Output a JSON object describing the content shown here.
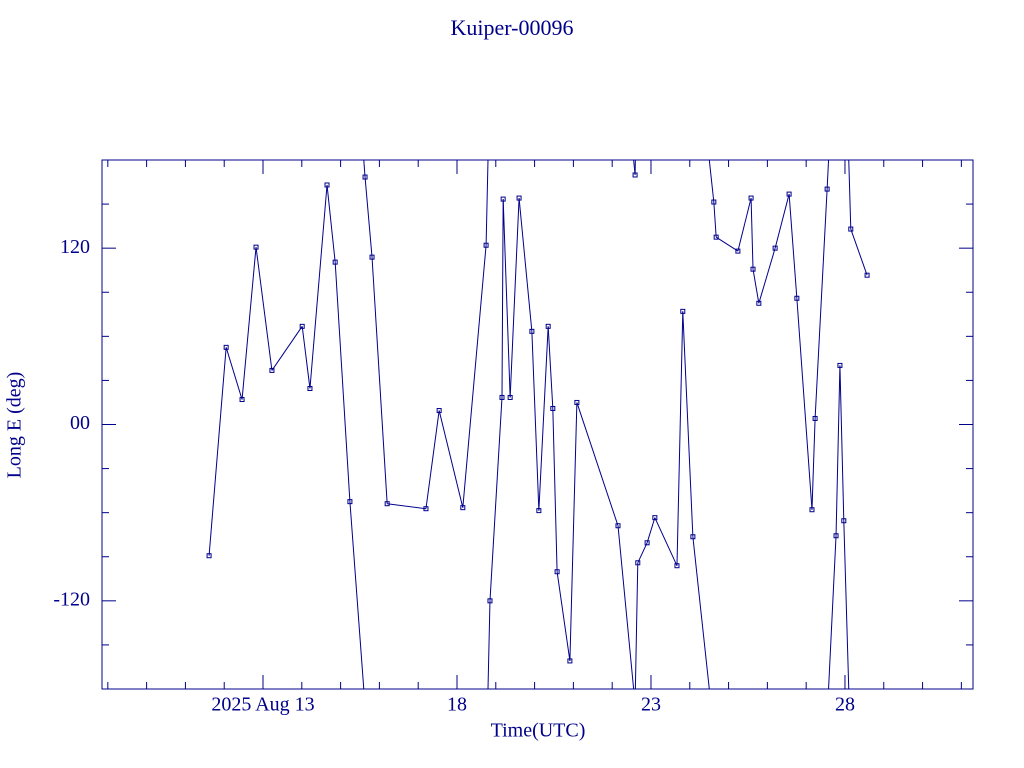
{
  "chart_data": {
    "type": "line",
    "title": "Kuiper-00096",
    "x_label": "Time(UTC)",
    "y_label": "Long E (deg)",
    "color": "#00008b",
    "xlim": [
      8.85,
      31.3
    ],
    "ylim": [
      -180,
      180
    ],
    "xticks": [
      {
        "value": 13,
        "label": "2025 Aug 13"
      },
      18,
      23,
      28
    ],
    "xminorticks": [
      9,
      10,
      11,
      12,
      14,
      15,
      16,
      17,
      19,
      20,
      21,
      22,
      24,
      25,
      26,
      27,
      29,
      30,
      31
    ],
    "yticks": [
      -120,
      {
        "value": 0,
        "label": "00"
      },
      120
    ],
    "yminorticks": [
      -150,
      -90,
      -60,
      -30,
      30,
      60,
      90,
      150
    ],
    "wrap": 360,
    "x": [
      11.61,
      12.05,
      12.46,
      12.82,
      13.23,
      14.01,
      14.21,
      14.65,
      14.86,
      15.24,
      15.63,
      15.81,
      16.2,
      17.2,
      17.54,
      18.15,
      18.75,
      18.85,
      19.16,
      19.19,
      19.37,
      19.6,
      19.93,
      20.11,
      20.35,
      20.47,
      20.58,
      20.91,
      21.09,
      22.15,
      22.59,
      22.66,
      22.9,
      23.1,
      23.67,
      23.82,
      24.08,
      24.62,
      24.68,
      25.24,
      25.58,
      25.63,
      25.78,
      26.2,
      26.56,
      26.76,
      27.15,
      27.23,
      27.54,
      27.77,
      27.87,
      27.97,
      28.15,
      28.57
    ],
    "values": [
      -89.3,
      52.5,
      17.0,
      120.7,
      36.8,
      66.8,
      24.5,
      163.0,
      110.5,
      -52.5,
      168.4,
      113.9,
      -53.9,
      -57.3,
      9.5,
      -56.6,
      122.0,
      -120.0,
      18.4,
      153.4,
      18.4,
      154.1,
      63.4,
      -58.6,
      66.8,
      10.9,
      -100.2,
      -160.9,
      15.0,
      -68.9,
      169.8,
      -94.1,
      -80.5,
      -63.4,
      -96.1,
      77.0,
      -76.4,
      151.4,
      127.5,
      118.0,
      154.1,
      105.7,
      82.5,
      120.0,
      156.8,
      85.9,
      -58.0,
      4.1,
      160.2,
      -75.7,
      40.2,
      -65.5,
      133.0,
      101.6
    ]
  }
}
